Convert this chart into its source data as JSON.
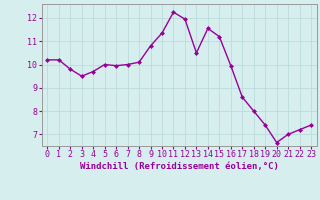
{
  "x": [
    0,
    1,
    2,
    3,
    4,
    5,
    6,
    7,
    8,
    9,
    10,
    11,
    12,
    13,
    14,
    15,
    16,
    17,
    18,
    19,
    20,
    21,
    22,
    23
  ],
  "y": [
    10.2,
    10.2,
    9.8,
    9.5,
    9.7,
    10.0,
    9.95,
    10.0,
    10.1,
    10.8,
    11.35,
    12.25,
    11.95,
    10.5,
    11.55,
    11.2,
    9.95,
    8.6,
    8.0,
    7.4,
    6.65,
    7.0,
    7.2,
    7.4
  ],
  "line_color": "#990099",
  "marker": "D",
  "marker_size": 2.0,
  "line_width": 1.0,
  "xlabel": "Windchill (Refroidissement éolien,°C)",
  "xlim": [
    -0.5,
    23.5
  ],
  "ylim": [
    6.5,
    12.6
  ],
  "yticks": [
    7,
    8,
    9,
    10,
    11,
    12
  ],
  "xticks": [
    0,
    1,
    2,
    3,
    4,
    5,
    6,
    7,
    8,
    9,
    10,
    11,
    12,
    13,
    14,
    15,
    16,
    17,
    18,
    19,
    20,
    21,
    22,
    23
  ],
  "background_color": "#d6eeee",
  "grid_color": "#b8d8d8",
  "tick_label_color": "#990099",
  "xlabel_color": "#990099",
  "xlabel_fontsize": 6.5,
  "tick_fontsize": 6.0
}
